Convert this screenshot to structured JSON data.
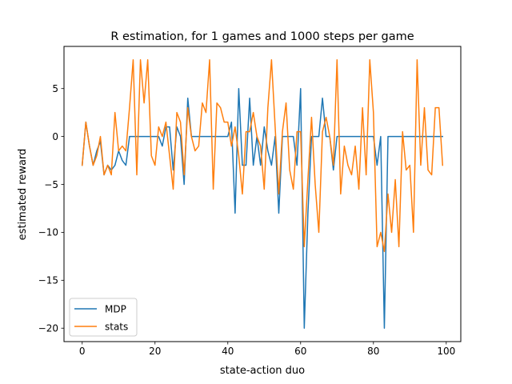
{
  "chart_data": {
    "type": "line",
    "title": "R estimation,  for 1 games and 1000 steps per game",
    "xlabel": "state-action duo",
    "ylabel": "estimated reward",
    "xlim": [
      -5,
      104
    ],
    "ylim": [
      -21.4,
      9.4
    ],
    "xticks": [
      0,
      20,
      40,
      60,
      80,
      100
    ],
    "yticks": [
      5,
      0,
      -5,
      -10,
      -15,
      -20
    ],
    "ytick_labels": [
      "5",
      "0",
      "−5",
      "−10",
      "−15",
      "−20"
    ],
    "legend_position": "lower-left",
    "grid": false,
    "series": [
      {
        "name": "MDP",
        "color": "#1f77b4",
        "values": [
          -3,
          1.5,
          -1,
          -3,
          -1.5,
          -0.5,
          -4,
          -3,
          -3.5,
          -3,
          -1.5,
          -2.5,
          -3,
          0,
          0,
          0,
          0,
          0,
          0,
          0,
          0,
          0,
          -1,
          1,
          1,
          -3.5,
          1,
          0,
          -5,
          4,
          0,
          0,
          0,
          0,
          0,
          0,
          0,
          0,
          0,
          0,
          0,
          1.5,
          -8,
          5,
          -3,
          -3,
          4,
          -3,
          0,
          -3,
          1,
          -1.5,
          -3,
          0,
          -8,
          0,
          0,
          0,
          0,
          -3,
          5,
          -20,
          -8,
          0,
          0,
          0,
          4,
          0,
          0,
          -3.5,
          0,
          0,
          0,
          0,
          0,
          0,
          0,
          0,
          0,
          0,
          0,
          -3,
          0,
          -20,
          0,
          0,
          0,
          0,
          0,
          0,
          0,
          0,
          0,
          0,
          0,
          0,
          0,
          0,
          0,
          0
        ]
      },
      {
        "name": "stats",
        "color": "#ff7f0e",
        "values": [
          -3,
          1.5,
          -1,
          -3,
          -2,
          0,
          -4,
          -3,
          -4,
          2.5,
          -1.5,
          -1,
          -1.5,
          3,
          8,
          -4,
          8,
          3.5,
          8,
          -2,
          -3,
          1,
          0,
          1.5,
          -2,
          -5.5,
          2.5,
          1.5,
          -4,
          3,
          0,
          -1.5,
          -1,
          3.5,
          2.5,
          8,
          -5.5,
          3.5,
          3,
          1.5,
          1.5,
          -1,
          1,
          -2,
          -6,
          0.5,
          0.5,
          2.5,
          0,
          -1,
          -5.5,
          3,
          8,
          1,
          -6,
          0.5,
          3.5,
          -3.5,
          -5.5,
          0.5,
          0.5,
          -11.5,
          -4.5,
          2,
          -5,
          -10,
          0.5,
          2,
          0,
          -3,
          8,
          -6,
          -1,
          -3,
          -4,
          -1,
          -5.5,
          3,
          -4,
          8,
          2.5,
          -11.5,
          -10,
          -12,
          -6,
          -10,
          -4.5,
          -11.5,
          0.5,
          -3.5,
          -3,
          -10,
          8,
          -3,
          3,
          -3.5,
          -4,
          3,
          3,
          -3
        ]
      }
    ]
  }
}
